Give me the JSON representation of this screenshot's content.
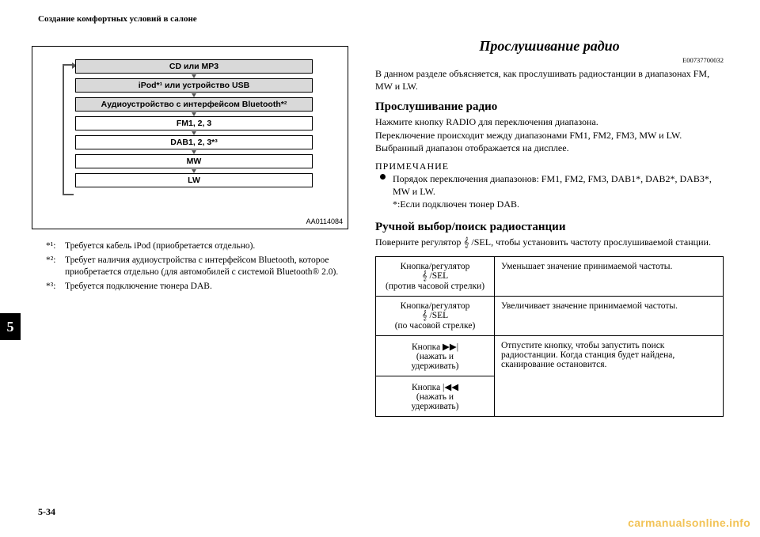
{
  "header": "Создание комфортных условий в салоне",
  "chapter_num": "5",
  "page_num": "5-34",
  "watermark": "carmanualsonline.info",
  "diagram": {
    "rows": [
      {
        "label": "CD или MP3",
        "shaded": true
      },
      {
        "label": "iPod*¹ или устройство USB",
        "shaded": true
      },
      {
        "label": "Аудиоустройство с интерфейсом Bluetooth*²",
        "shaded": true
      },
      {
        "label": "FM1, 2, 3",
        "shaded": false
      },
      {
        "label": "DAB1, 2, 3*³",
        "shaded": false
      },
      {
        "label": "MW",
        "shaded": false
      },
      {
        "label": "LW",
        "shaded": false
      }
    ],
    "code": "AA0114084"
  },
  "footnotes": [
    {
      "mark": "*¹:",
      "text": "Требуется кабель iPod (приобретается отдельно)."
    },
    {
      "mark": "*²:",
      "text": "Требует наличия аудиоустройства с интерфейсом Bluetooth, которое приобретается отдельно (для автомобилей с системой Bluetooth® 2.0)."
    },
    {
      "mark": "*³:",
      "text": "Требуется подключение тюнера DAB."
    }
  ],
  "right": {
    "title": "Прослушивание радио",
    "code": "E00737700032",
    "intro": "В данном разделе объясняется, как прослушивать радиостанции в диапазонах FM, MW и LW.",
    "h2a": "Прослушивание радио",
    "p2a": "Нажмите кнопку RADIO для переключения диапазона.",
    "p2b": "Переключение происходит между диапазонами FM1, FM2, FM3, MW и LW.",
    "p2c": "Выбранный диапазон отображается на дисплее.",
    "note_label": "ПРИМЕЧАНИЕ",
    "note_text": "Порядок переключения диапазонов: FM1, FM2, FM3, DAB1*, DAB2*, DAB3*, MW и LW.",
    "note_sub": "*:Если подключен тюнер DAB.",
    "h2b": "Ручной выбор/поиск радиостанции",
    "p3": "Поверните регулятор 𝄞 /SEL, чтобы установить частоту прослушиваемой станции.",
    "table": [
      {
        "left_a": "Кнопка/регулятор",
        "left_b": "𝄞 /SEL",
        "left_c": "(против часовой стрелки)",
        "right": "Уменьшает значение принимаемой частоты."
      },
      {
        "left_a": "Кнопка/регулятор",
        "left_b": "𝄞 /SEL",
        "left_c": "(по часовой стрелке)",
        "right": "Увеличивает значение принимаемой частоты."
      },
      {
        "left_a": "Кнопка ▶▶|",
        "left_b": "(нажать и",
        "left_c": "удерживать)",
        "right": "Отпустите кнопку, чтобы запустить поиск радиостанции. Когда станция будет найдена, сканирование остановится."
      },
      {
        "left_a": "Кнопка |◀◀",
        "left_b": "(нажать и",
        "left_c": "удерживать)",
        "right": ""
      }
    ]
  }
}
